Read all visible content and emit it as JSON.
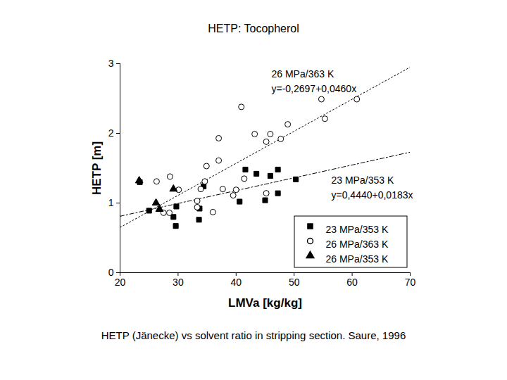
{
  "chart_data": {
    "type": "scatter",
    "title": "HETP: Tocopherol",
    "caption": "HETP (Jänecke) vs solvent ratio in stripping section. Saure, 1996",
    "x_label": "LMVa [kg/kg]",
    "y_label": "HETP [m]",
    "xlim": [
      20,
      70
    ],
    "xticks": [
      20,
      30,
      40,
      50,
      60,
      70
    ],
    "ylim": [
      0,
      3
    ],
    "yticks": [
      0,
      1,
      2,
      3
    ],
    "grid": false,
    "legend": "lower right",
    "series": [
      {
        "name": "23 MPa/353 K",
        "color": "#000000",
        "marker": "square",
        "x": [
          23.4,
          25.0,
          29.2,
          29.7,
          29.6,
          33.6,
          33.7,
          34.4,
          41.6,
          40.6,
          43.5,
          45.0,
          45.9,
          47.2,
          47.2,
          50.3
        ],
        "values": [
          1.3,
          0.89,
          0.8,
          0.95,
          0.67,
          0.76,
          0.92,
          1.24,
          1.48,
          1.02,
          1.42,
          1.04,
          1.39,
          1.48,
          1.14,
          1.34
        ]
      },
      {
        "name": "26 MPa/363 K",
        "color": "#000000",
        "marker": "open_circle",
        "x": [
          26.3,
          28.6,
          27.5,
          28.5,
          30.1,
          33.3,
          33.3,
          33.9,
          34.6,
          36.0,
          34.9,
          37.0,
          37.0,
          37.7,
          39.5,
          40.0,
          41.4,
          40.9,
          43.2,
          45.2,
          45.9,
          45.2,
          47.7,
          48.9,
          54.7,
          55.3,
          60.8
        ],
        "values": [
          1.31,
          1.38,
          0.86,
          0.86,
          1.19,
          0.94,
          1.03,
          1.2,
          1.31,
          0.87,
          1.53,
          1.61,
          1.93,
          1.2,
          1.11,
          1.19,
          1.35,
          2.38,
          1.99,
          1.88,
          1.99,
          1.14,
          1.92,
          2.13,
          2.49,
          2.21,
          2.49
        ]
      },
      {
        "name": "26 MPa/353 K",
        "color": "#000000",
        "marker": "triangle",
        "x": [
          23.3,
          26.2,
          26.8,
          29.2
        ],
        "values": [
          1.32,
          1.0,
          0.91,
          1.2
        ]
      }
    ],
    "fit_lines": [
      {
        "label": "26 MPa/363 K",
        "equation": "y=-0,2697+0,0460x",
        "line_style": "dotted",
        "color": "#000000",
        "x": [
          20,
          70
        ],
        "values": [
          0.65,
          2.95
        ]
      },
      {
        "label": "23 MPa/353 K",
        "equation": "y=0,4440+0,0183x",
        "line_style": "dashed",
        "color": "#000000",
        "x": [
          20,
          70
        ],
        "values": [
          0.81,
          1.73
        ]
      }
    ]
  }
}
